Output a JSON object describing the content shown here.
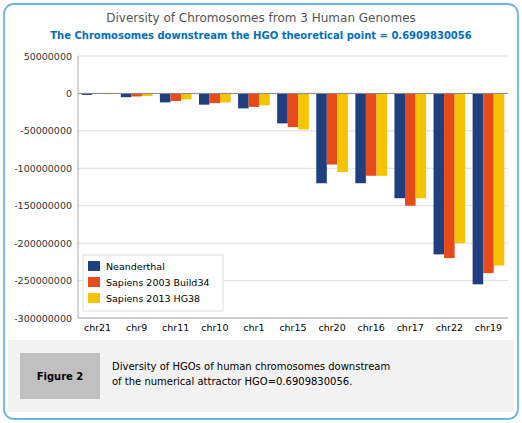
{
  "chart_data": {
    "type": "bar",
    "title": "Diversity of Chromosomes from 3 Human Genomes",
    "subtitle": "The Chromosomes downstream the HGO theoretical point = 0.6909830056",
    "categories": [
      "chr21",
      "chr9",
      "chr11",
      "chr10",
      "chr1",
      "chr15",
      "chr20",
      "chr16",
      "chr17",
      "chr22",
      "chr19"
    ],
    "series": [
      {
        "name": "Neanderthal",
        "color": "#1F3F7F",
        "values": [
          -2000000,
          -5000000,
          -12000000,
          -15000000,
          -20000000,
          -40000000,
          -120000000,
          -120000000,
          -140000000,
          -215000000,
          -255000000
        ]
      },
      {
        "name": "Sapiens 2003 Build34",
        "color": "#E84B1A",
        "values": [
          -500000,
          -4000000,
          -10000000,
          -13000000,
          -18000000,
          -45000000,
          -95000000,
          -110000000,
          -150000000,
          -220000000,
          -240000000
        ]
      },
      {
        "name": "Sapiens 2013 HG38",
        "color": "#F5C300",
        "values": [
          -1000000,
          -3500000,
          -8000000,
          -12000000,
          -16000000,
          -48000000,
          -105000000,
          -110000000,
          -140000000,
          -200000000,
          -230000000
        ]
      }
    ],
    "ylim": [
      -300000000,
      50000000
    ],
    "yticks": [
      50000000,
      0,
      -50000000,
      -100000000,
      -150000000,
      -200000000,
      -250000000,
      -300000000
    ],
    "grid": true,
    "legend": "lower left",
    "annotations": [
      "Figure 2",
      "Diversity of HGOs of human chromosomes downstream\nof the numerical attractor HGO=0.6909830056."
    ]
  }
}
